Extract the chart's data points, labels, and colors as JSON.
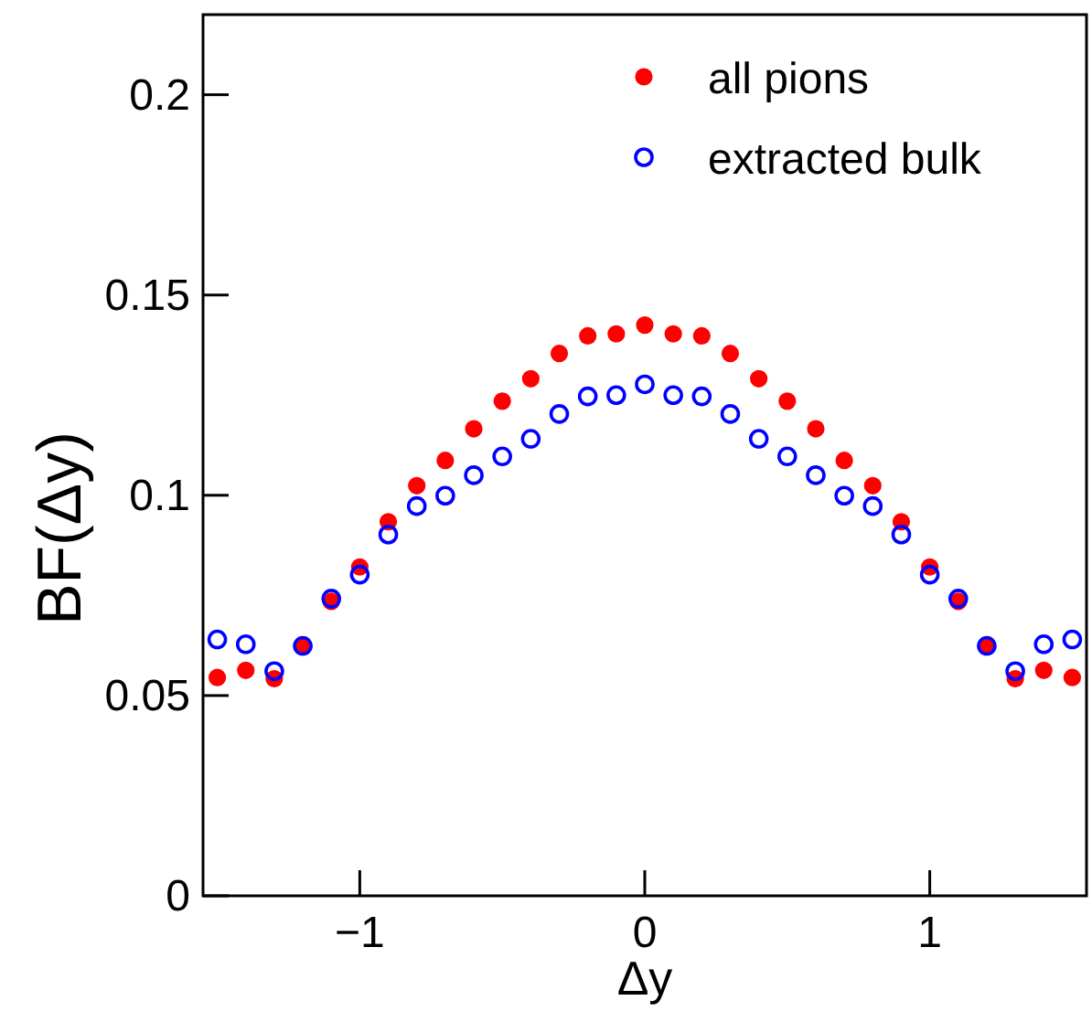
{
  "chart_data": {
    "type": "scatter",
    "xlabel": "Δy",
    "ylabel": "BF(Δy)",
    "x": [
      -1.5,
      -1.4,
      -1.3,
      -1.2,
      -1.1,
      -1.0,
      -0.9,
      -0.8,
      -0.7,
      -0.6,
      -0.5,
      -0.4,
      -0.3,
      -0.2,
      -0.1,
      0,
      0.1,
      0.2,
      0.3,
      0.4,
      0.5,
      0.6,
      0.7,
      0.8,
      0.9,
      1.0,
      1.1,
      1.2,
      1.3,
      1.4,
      1.5
    ],
    "series": [
      {
        "name": "all pions",
        "color": "#ff0000",
        "marker": "circle",
        "values": [
          0.0545,
          0.0563,
          0.0542,
          0.0624,
          0.0735,
          0.0821,
          0.0934,
          0.1024,
          0.1087,
          0.1166,
          0.1235,
          0.1291,
          0.1354,
          0.1398,
          0.1403,
          0.1425,
          0.1403,
          0.1398,
          0.1354,
          0.1291,
          0.1235,
          0.1166,
          0.1087,
          0.1024,
          0.0934,
          0.0821,
          0.0735,
          0.0624,
          0.0542,
          0.0563,
          0.0545
        ]
      },
      {
        "name": "extracted bulk",
        "color": "#0000ff",
        "marker": "open circle",
        "values": [
          0.064,
          0.0628,
          0.0561,
          0.0624,
          0.0742,
          0.0802,
          0.0902,
          0.0973,
          0.0999,
          0.105,
          0.1097,
          0.1141,
          0.1203,
          0.1247,
          0.125,
          0.1277,
          0.125,
          0.1247,
          0.1203,
          0.1141,
          0.1097,
          0.105,
          0.0999,
          0.0973,
          0.0902,
          0.0802,
          0.0742,
          0.0624,
          0.0561,
          0.0628,
          0.064
        ]
      }
    ],
    "xlim": [
      -1.55,
      1.55
    ],
    "xticks": [
      {
        "value": -1,
        "label": "−1"
      },
      0,
      1
    ],
    "ylim": [
      0,
      0.22
    ],
    "yticks": [
      0,
      0.05,
      {
        "value": 0.1,
        "label": "0.1"
      },
      0.15,
      {
        "value": 0.2,
        "label": "0.2"
      }
    ],
    "legend": "top right",
    "grid": false
  }
}
